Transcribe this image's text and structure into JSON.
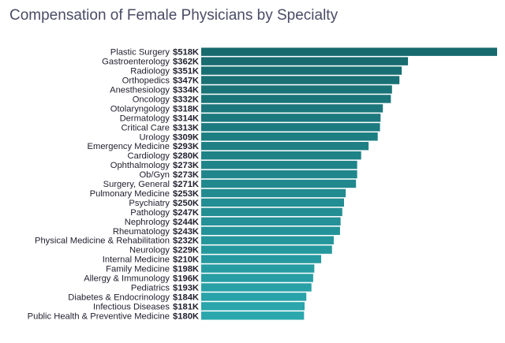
{
  "chart_data": {
    "type": "bar",
    "orientation": "horizontal",
    "title": "Compensation of Female Physicians by Specialty",
    "xlabel": "",
    "ylabel": "",
    "value_prefix": "$",
    "value_suffix": "K",
    "xlim": [
      0,
      518
    ],
    "grid": false,
    "legend": "none",
    "colors": {
      "top": "#176a6e",
      "bottom": "#2aa7ad"
    },
    "categories": [
      "Plastic Surgery",
      "Gastroenterology",
      "Radiology",
      "Orthopedics",
      "Anesthesiology",
      "Oncology",
      "Otolaryngology",
      "Dermatology",
      "Critical Care",
      "Urology",
      "Emergency Medicine",
      "Cardiology",
      "Ophthalmology",
      "Ob/Gyn",
      "Surgery, General",
      "Pulmonary Medicine",
      "Psychiatry",
      "Pathology",
      "Nephrology",
      "Rheumatology",
      "Physical Medicine & Rehabilitation",
      "Neurology",
      "Internal Medicine",
      "Family Medicine",
      "Allergy & Immunology",
      "Pediatrics",
      "Diabetes & Endocrinology",
      "Infectious Diseases",
      "Public Health & Preventive Medicine"
    ],
    "values": [
      518,
      362,
      351,
      347,
      334,
      332,
      318,
      314,
      313,
      309,
      293,
      280,
      273,
      273,
      271,
      253,
      250,
      247,
      244,
      243,
      232,
      229,
      210,
      198,
      196,
      193,
      184,
      181,
      180
    ],
    "value_labels": [
      "$518K",
      "$362K",
      "$351K",
      "$347K",
      "$334K",
      "$332K",
      "$318K",
      "$314K",
      "$313K",
      "$309K",
      "$293K",
      "$280K",
      "$273K",
      "$273K",
      "$271K",
      "$253K",
      "$250K",
      "$247K",
      "$244K",
      "$243K",
      "$232K",
      "$229K",
      "$210K",
      "$198K",
      "$196K",
      "$193K",
      "$184K",
      "$181K",
      "$180K"
    ]
  }
}
